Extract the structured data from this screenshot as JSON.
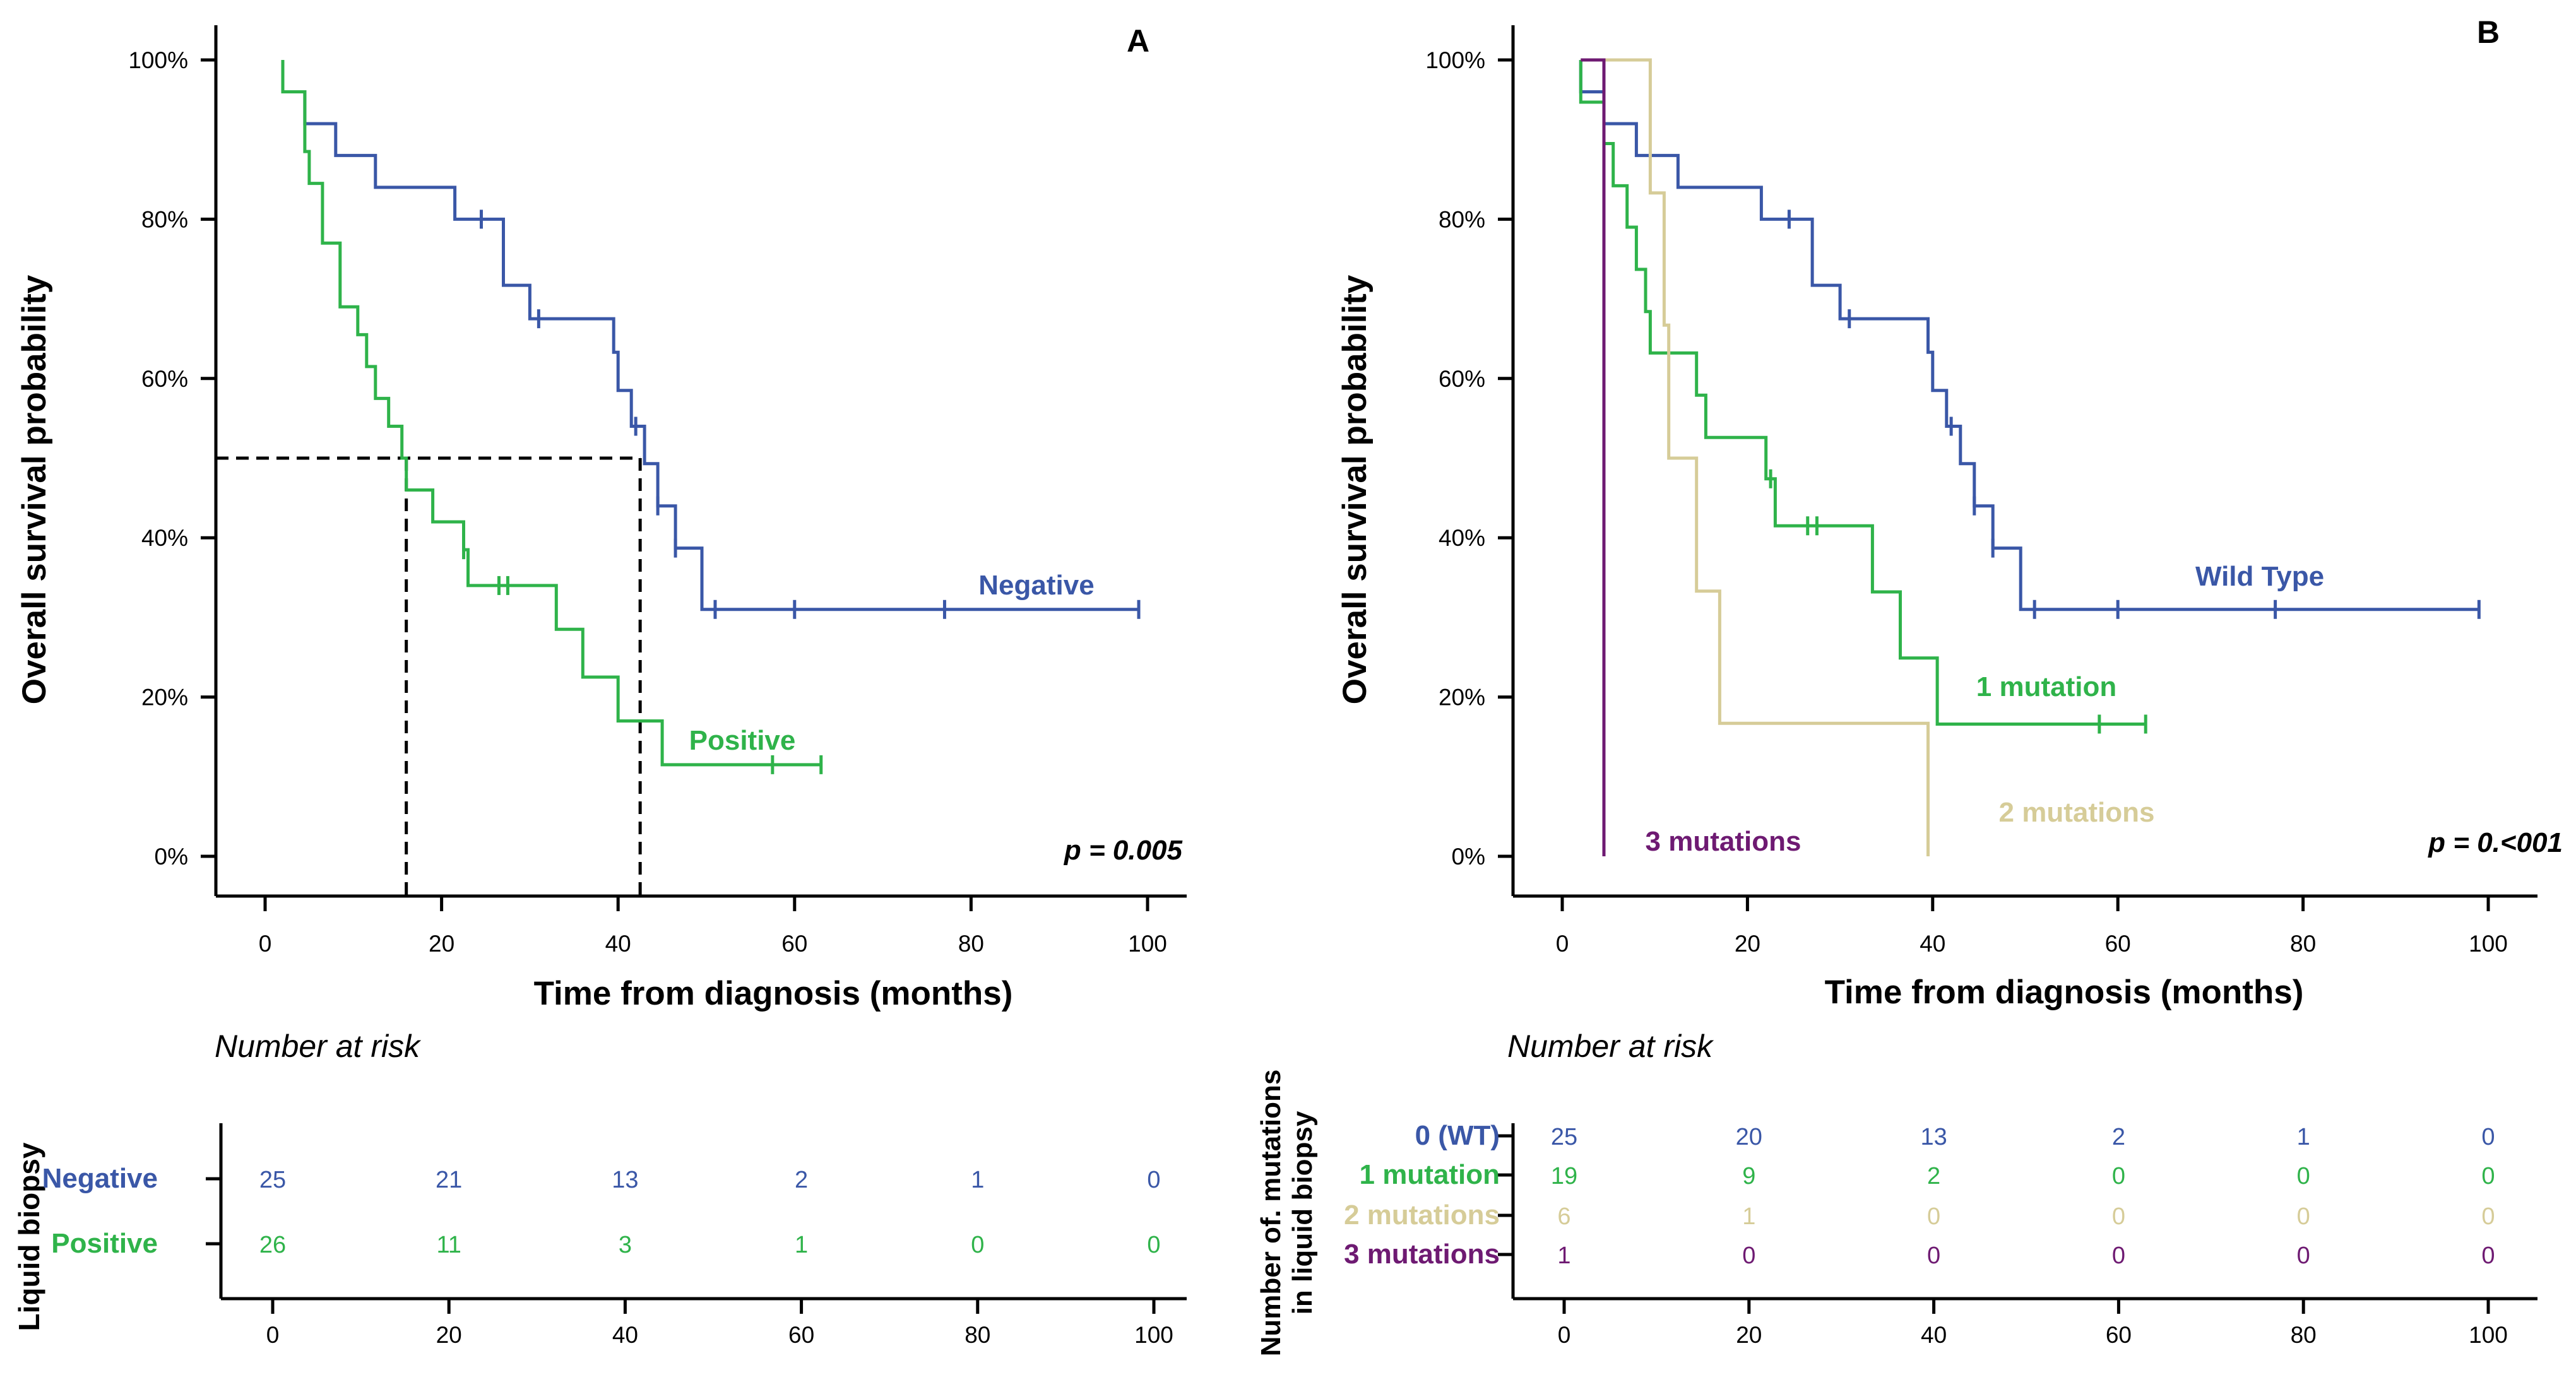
{
  "colors": {
    "negative": "#3a57a7",
    "positive": "#2fb34a",
    "wild_type": "#3a57a7",
    "one_mutation": "#2fb34a",
    "two_mutations": "#d6cc98",
    "three_mutations": "#6e1a72",
    "axis": "#000000"
  },
  "chart_data": [
    {
      "type": "line",
      "subtype": "kaplan-meier",
      "panel_label": "A",
      "ylabel": "Overall survival probability",
      "xlabel": "Time from diagnosis (months)",
      "xlim": [
        -6,
        105
      ],
      "ylim": [
        -0.05,
        1.02
      ],
      "xticks": [
        0,
        20,
        40,
        60,
        80,
        100
      ],
      "ytick_labels": [
        "100%",
        "80%",
        "60%",
        "40%",
        "20%",
        "0%"
      ],
      "yticks": [
        1.0,
        0.8,
        0.6,
        0.4,
        0.2,
        0.0
      ],
      "p_value": "p = 0.005",
      "median_lines": [
        {
          "x": 16,
          "y": 0.5
        },
        {
          "x": 42.5,
          "y": 0.5
        }
      ],
      "series": [
        {
          "name": "Negative",
          "color_key": "negative",
          "steps": [
            [
              2,
              1.0
            ],
            [
              2,
              0.96
            ],
            [
              4.5,
              0.96
            ],
            [
              4.5,
              0.92
            ],
            [
              8,
              0.92
            ],
            [
              8,
              0.88
            ],
            [
              12.5,
              0.88
            ],
            [
              12.5,
              0.84
            ],
            [
              21.5,
              0.84
            ],
            [
              21.5,
              0.8
            ],
            [
              27,
              0.8
            ],
            [
              27,
              0.717
            ],
            [
              30,
              0.717
            ],
            [
              30,
              0.675
            ],
            [
              39.5,
              0.675
            ],
            [
              39.5,
              0.633
            ],
            [
              40,
              0.633
            ],
            [
              40,
              0.585
            ],
            [
              41.5,
              0.585
            ],
            [
              41.5,
              0.54
            ],
            [
              43,
              0.54
            ],
            [
              43,
              0.493
            ],
            [
              44.5,
              0.493
            ],
            [
              44.5,
              0.44
            ],
            [
              46.5,
              0.44
            ],
            [
              46.5,
              0.387
            ],
            [
              49.5,
              0.387
            ],
            [
              49.5,
              0.31
            ],
            [
              99,
              0.31
            ]
          ],
          "censors": [
            [
              24.5,
              0.8
            ],
            [
              31,
              0.675
            ],
            [
              42,
              0.54
            ],
            [
              44.5,
              0.44
            ],
            [
              46.5,
              0.387
            ],
            [
              51,
              0.31
            ],
            [
              60,
              0.31
            ],
            [
              77,
              0.31
            ],
            [
              99,
              0.31
            ]
          ]
        },
        {
          "name": "Positive",
          "color_key": "positive",
          "steps": [
            [
              2,
              1.0
            ],
            [
              2,
              0.96
            ],
            [
              4.5,
              0.96
            ],
            [
              4.5,
              0.885
            ],
            [
              5,
              0.885
            ],
            [
              5,
              0.845
            ],
            [
              6.5,
              0.845
            ],
            [
              6.5,
              0.77
            ],
            [
              8.5,
              0.77
            ],
            [
              8.5,
              0.69
            ],
            [
              10.5,
              0.69
            ],
            [
              10.5,
              0.655
            ],
            [
              11.5,
              0.655
            ],
            [
              11.5,
              0.615
            ],
            [
              12.5,
              0.615
            ],
            [
              12.5,
              0.575
            ],
            [
              14,
              0.575
            ],
            [
              14,
              0.54
            ],
            [
              15.5,
              0.54
            ],
            [
              15.5,
              0.5
            ],
            [
              16,
              0.5
            ],
            [
              16,
              0.46
            ],
            [
              19,
              0.46
            ],
            [
              19,
              0.42
            ],
            [
              22.5,
              0.42
            ],
            [
              22.5,
              0.385
            ],
            [
              23,
              0.385
            ],
            [
              23,
              0.34
            ],
            [
              33,
              0.34
            ],
            [
              33,
              0.285
            ],
            [
              36,
              0.285
            ],
            [
              36,
              0.225
            ],
            [
              40,
              0.225
            ],
            [
              40,
              0.17
            ],
            [
              45,
              0.17
            ],
            [
              45,
              0.115
            ],
            [
              63,
              0.115
            ]
          ],
          "censors": [
            [
              22.5,
              0.385
            ],
            [
              26.5,
              0.34
            ],
            [
              27.5,
              0.34
            ],
            [
              57.5,
              0.115
            ],
            [
              63,
              0.115
            ]
          ]
        }
      ],
      "labels": [
        {
          "text": "Negative",
          "color_key": "negative"
        },
        {
          "text": "Positive",
          "color_key": "positive"
        }
      ],
      "risk_table": {
        "title": "Number at risk",
        "ylabel": "Liquid biopsy",
        "xticks": [
          0,
          20,
          40,
          60,
          80,
          100
        ],
        "rows": [
          {
            "label": "Negative",
            "color_key": "negative",
            "values": [
              "25",
              "21",
              "13",
              "2",
              "1",
              "0"
            ]
          },
          {
            "label": "Positive",
            "color_key": "positive",
            "values": [
              "26",
              "11",
              "3",
              "1",
              "0",
              "0"
            ]
          }
        ]
      }
    },
    {
      "type": "line",
      "subtype": "kaplan-meier",
      "panel_label": "B",
      "ylabel": "Overall survival probability",
      "xlabel": "Time from diagnosis (months)",
      "xlim": [
        -5,
        102
      ],
      "ylim": [
        -0.05,
        1.02
      ],
      "xticks": [
        0,
        20,
        40,
        60,
        80,
        100
      ],
      "ytick_labels": [
        "100%",
        "80%",
        "60%",
        "40%",
        "20%",
        "0%"
      ],
      "yticks": [
        1.0,
        0.8,
        0.6,
        0.4,
        0.2,
        0.0
      ],
      "p_value": "p = 0.<001",
      "series": [
        {
          "name": "Wild Type",
          "color_key": "wild_type",
          "steps": [
            [
              2,
              1.0
            ],
            [
              2,
              0.96
            ],
            [
              4.5,
              0.96
            ],
            [
              4.5,
              0.92
            ],
            [
              8,
              0.92
            ],
            [
              8,
              0.88
            ],
            [
              12.5,
              0.88
            ],
            [
              12.5,
              0.84
            ],
            [
              21.5,
              0.84
            ],
            [
              21.5,
              0.8
            ],
            [
              27,
              0.8
            ],
            [
              27,
              0.717
            ],
            [
              30,
              0.717
            ],
            [
              30,
              0.675
            ],
            [
              39.5,
              0.675
            ],
            [
              39.5,
              0.633
            ],
            [
              40,
              0.633
            ],
            [
              40,
              0.585
            ],
            [
              41.5,
              0.585
            ],
            [
              41.5,
              0.54
            ],
            [
              43,
              0.54
            ],
            [
              43,
              0.493
            ],
            [
              44.5,
              0.493
            ],
            [
              44.5,
              0.44
            ],
            [
              46.5,
              0.44
            ],
            [
              46.5,
              0.387
            ],
            [
              49.5,
              0.387
            ],
            [
              49.5,
              0.31
            ],
            [
              99,
              0.31
            ]
          ],
          "censors": [
            [
              24.5,
              0.8
            ],
            [
              31,
              0.675
            ],
            [
              42,
              0.54
            ],
            [
              44.5,
              0.44
            ],
            [
              46.5,
              0.387
            ],
            [
              51,
              0.31
            ],
            [
              60,
              0.31
            ],
            [
              77,
              0.31
            ],
            [
              99,
              0.31
            ]
          ]
        },
        {
          "name": "1 mutation",
          "color_key": "one_mutation",
          "steps": [
            [
              2,
              1.0
            ],
            [
              2,
              0.947
            ],
            [
              4.5,
              0.947
            ],
            [
              4.5,
              0.895
            ],
            [
              5.5,
              0.895
            ],
            [
              5.5,
              0.842
            ],
            [
              7,
              0.842
            ],
            [
              7,
              0.79
            ],
            [
              8,
              0.79
            ],
            [
              8,
              0.737
            ],
            [
              9,
              0.737
            ],
            [
              9,
              0.684
            ],
            [
              9.5,
              0.684
            ],
            [
              9.5,
              0.632
            ],
            [
              14.5,
              0.632
            ],
            [
              14.5,
              0.579
            ],
            [
              15.5,
              0.579
            ],
            [
              15.5,
              0.526
            ],
            [
              22,
              0.526
            ],
            [
              22,
              0.474
            ],
            [
              23,
              0.474
            ],
            [
              23,
              0.415
            ],
            [
              33.5,
              0.415
            ],
            [
              33.5,
              0.332
            ],
            [
              36.5,
              0.332
            ],
            [
              36.5,
              0.249
            ],
            [
              40.5,
              0.249
            ],
            [
              40.5,
              0.166
            ],
            [
              63,
              0.166
            ]
          ],
          "censors": [
            [
              22.5,
              0.474
            ],
            [
              26.5,
              0.415
            ],
            [
              27.5,
              0.415
            ],
            [
              58,
              0.166
            ],
            [
              63,
              0.166
            ]
          ]
        },
        {
          "name": "2 mutations",
          "color_key": "two_mutations",
          "steps": [
            [
              2,
              1.0
            ],
            [
              9.5,
              1.0
            ],
            [
              9.5,
              0.833
            ],
            [
              11,
              0.833
            ],
            [
              11,
              0.667
            ],
            [
              11.5,
              0.667
            ],
            [
              11.5,
              0.5
            ],
            [
              14.5,
              0.5
            ],
            [
              14.5,
              0.333
            ],
            [
              17,
              0.333
            ],
            [
              17,
              0.167
            ],
            [
              39.5,
              0.167
            ],
            [
              39.5,
              0.0
            ]
          ],
          "censors": []
        },
        {
          "name": "3 mutations",
          "color_key": "three_mutations",
          "steps": [
            [
              2,
              1.0
            ],
            [
              4.5,
              1.0
            ],
            [
              4.5,
              0.0
            ]
          ],
          "censors": []
        }
      ],
      "labels": [
        {
          "text": "Wild Type",
          "color_key": "wild_type"
        },
        {
          "text": "1 mutation",
          "color_key": "one_mutation"
        },
        {
          "text": "2 mutations",
          "color_key": "two_mutations"
        },
        {
          "text": "3 mutations",
          "color_key": "three_mutations"
        }
      ],
      "risk_table": {
        "title": "Number at risk",
        "ylabel_line1": "Number of. mutations",
        "ylabel_line2": "in liquid biopsy",
        "xticks": [
          0,
          20,
          40,
          60,
          80,
          100
        ],
        "rows": [
          {
            "label": "0 (WT)",
            "color_key": "wild_type",
            "values": [
              "25",
              "20",
              "13",
              "2",
              "1",
              "0"
            ]
          },
          {
            "label": "1 mutation",
            "color_key": "one_mutation",
            "values": [
              "19",
              "9",
              "2",
              "0",
              "0",
              "0"
            ]
          },
          {
            "label": "2 mutations",
            "color_key": "two_mutations",
            "values": [
              "6",
              "1",
              "0",
              "0",
              "0",
              "0"
            ]
          },
          {
            "label": "3 mutations",
            "color_key": "three_mutations",
            "values": [
              "1",
              "0",
              "0",
              "0",
              "0",
              "0"
            ]
          }
        ]
      }
    }
  ]
}
